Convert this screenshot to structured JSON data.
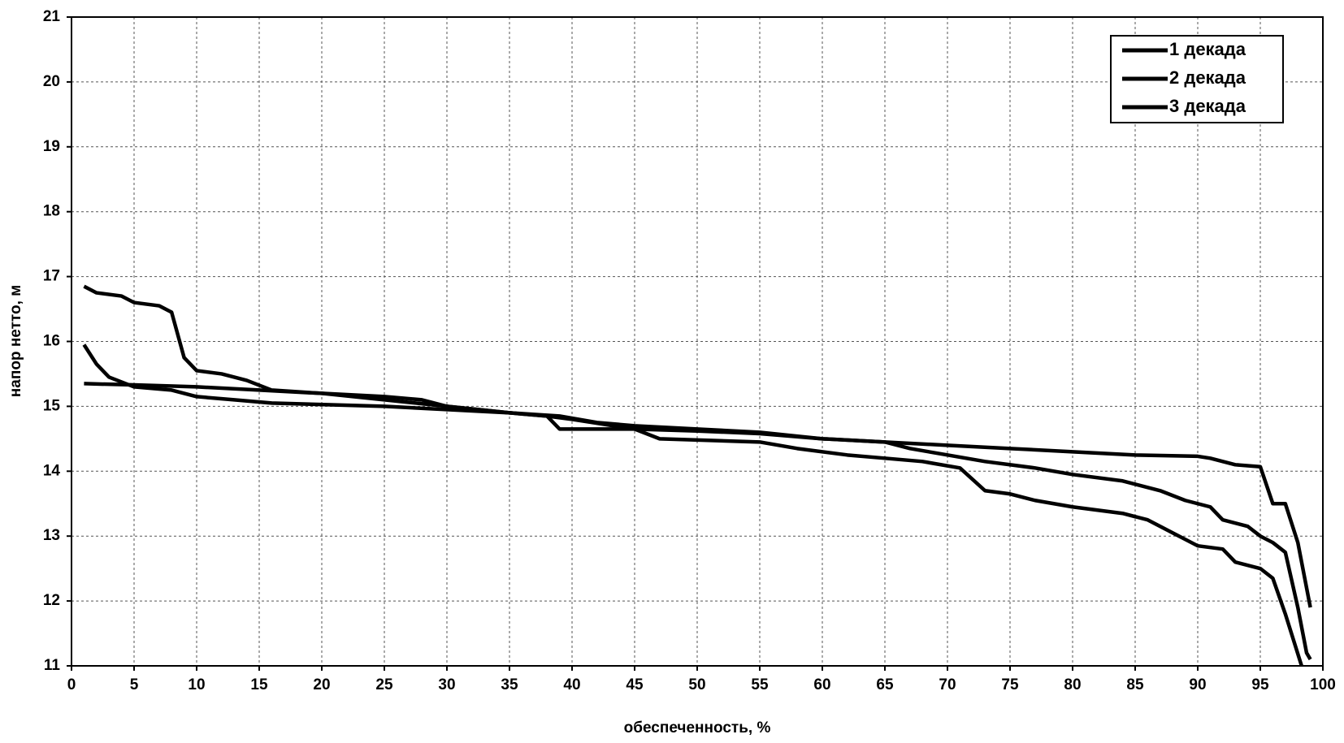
{
  "chart_data": {
    "type": "line",
    "xlabel": "обеспеченность, %",
    "ylabel": "напор нетто, м",
    "xlim": [
      0,
      100
    ],
    "ylim": [
      11,
      21
    ],
    "xticks": [
      0,
      5,
      10,
      15,
      20,
      25,
      30,
      35,
      40,
      45,
      50,
      55,
      60,
      65,
      70,
      75,
      80,
      85,
      90,
      95,
      100
    ],
    "yticks": [
      11,
      12,
      13,
      14,
      15,
      16,
      17,
      18,
      19,
      20,
      21
    ],
    "grid": true,
    "legend": "upper right",
    "series": [
      {
        "name": "1 декада",
        "color": "#000000",
        "x": [
          1,
          5,
          10,
          15,
          20,
          25,
          30,
          35,
          38,
          40,
          45,
          50,
          55,
          60,
          65,
          70,
          75,
          80,
          85,
          90,
          91,
          93,
          95,
          96,
          97,
          98,
          99
        ],
        "values": [
          15.35,
          15.33,
          15.3,
          15.25,
          15.2,
          15.1,
          15.0,
          14.9,
          14.85,
          14.8,
          14.65,
          14.62,
          14.58,
          14.5,
          14.45,
          14.4,
          14.35,
          14.3,
          14.25,
          14.23,
          14.2,
          14.1,
          14.07,
          13.5,
          13.5,
          12.9,
          11.9
        ]
      },
      {
        "name": "2 декада",
        "color": "#000000",
        "x": [
          1,
          2,
          3,
          5,
          8,
          10,
          13,
          16,
          25,
          30,
          35,
          39,
          42,
          45,
          50,
          55,
          60,
          65,
          67,
          70,
          73,
          77,
          80,
          84,
          87,
          89,
          91,
          92,
          94,
          95,
          96,
          97,
          98,
          98.7,
          99
        ],
        "values": [
          15.95,
          15.65,
          15.45,
          15.3,
          15.25,
          15.15,
          15.1,
          15.05,
          15.0,
          14.95,
          14.9,
          14.85,
          14.75,
          14.7,
          14.65,
          14.6,
          14.5,
          14.45,
          14.35,
          14.25,
          14.15,
          14.05,
          13.95,
          13.85,
          13.7,
          13.55,
          13.45,
          13.25,
          13.15,
          13.0,
          12.9,
          12.75,
          11.9,
          11.2,
          11.1
        ]
      },
      {
        "name": "3 декада",
        "color": "#000000",
        "x": [
          1,
          2,
          4,
          5,
          7,
          8,
          9,
          10,
          12,
          14,
          16,
          20,
          25,
          28,
          30,
          35,
          38,
          39,
          45,
          47,
          55,
          58,
          62,
          65,
          68,
          71,
          73,
          75,
          77,
          80,
          84,
          86,
          88,
          90,
          92,
          93,
          95,
          96,
          97,
          98.3
        ],
        "values": [
          16.85,
          16.75,
          16.7,
          16.6,
          16.55,
          16.45,
          15.75,
          15.55,
          15.5,
          15.4,
          15.25,
          15.2,
          15.15,
          15.1,
          15.0,
          14.9,
          14.85,
          14.65,
          14.65,
          14.5,
          14.45,
          14.35,
          14.25,
          14.2,
          14.15,
          14.05,
          13.7,
          13.65,
          13.55,
          13.45,
          13.35,
          13.25,
          13.05,
          12.85,
          12.8,
          12.6,
          12.5,
          12.35,
          11.8,
          11.0
        ]
      }
    ]
  }
}
